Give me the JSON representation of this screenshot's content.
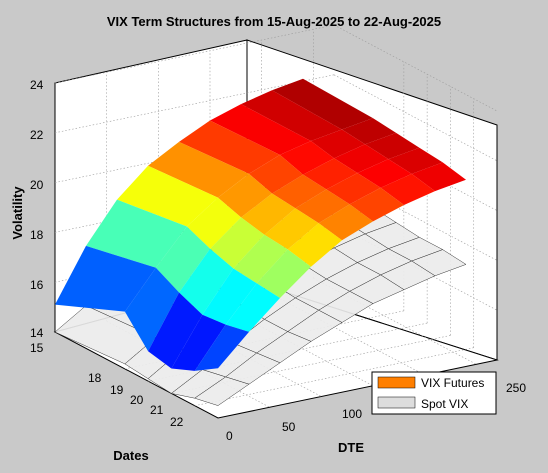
{
  "chart_data": {
    "type": "surface3d",
    "title": "VIX Term Structures from 15-Aug-2025 to 22-Aug-2025",
    "xlabel": "DTE",
    "ylabel": "Dates",
    "zlabel": "Volatility",
    "xlim": [
      0,
      270
    ],
    "ylim": [
      15,
      22
    ],
    "zlim": [
      14,
      24
    ],
    "xticks": [
      "0",
      "50",
      "100",
      "250"
    ],
    "yticks": [
      "15",
      "18",
      "19",
      "20",
      "21",
      "22"
    ],
    "zticks": [
      "14",
      "16",
      "18",
      "20",
      "22",
      "24"
    ],
    "grid": true,
    "legend": {
      "placement": "bottom-right",
      "items": [
        "VIX Futures",
        "Spot VIX"
      ]
    },
    "series": [
      {
        "name": "VIX Futures",
        "color": "#ff7f00"
      },
      {
        "name": "Spot VIX",
        "color": "#dddddd"
      }
    ],
    "dte": [
      0,
      30,
      60,
      90,
      120,
      150,
      180,
      210,
      240
    ],
    "dates": [
      15,
      18,
      19,
      20,
      21,
      22
    ],
    "futures": [
      [
        15.1,
        17.2,
        18.8,
        19.9,
        20.6,
        21.2,
        21.6,
        21.9,
        22.1
      ],
      [
        16.3,
        17.8,
        19.2,
        20.1,
        20.8,
        21.3,
        21.6,
        21.8,
        22.0
      ],
      [
        15.2,
        17.3,
        18.8,
        19.8,
        20.5,
        21.0,
        21.4,
        21.7,
        21.9
      ],
      [
        15.0,
        16.9,
        18.5,
        19.6,
        20.4,
        20.9,
        21.3,
        21.6,
        21.8
      ],
      [
        15.4,
        17.0,
        18.4,
        19.5,
        20.3,
        20.8,
        21.2,
        21.5,
        21.7
      ],
      [
        16.0,
        17.2,
        18.3,
        19.3,
        20.1,
        20.6,
        21.0,
        21.3,
        21.5
      ]
    ],
    "spot": [
      [
        14.0,
        14.8,
        15.6,
        16.3,
        16.9,
        17.4,
        17.8,
        18.1,
        18.3
      ],
      [
        14.2,
        15.0,
        15.8,
        16.4,
        17.0,
        17.5,
        17.9,
        18.2,
        18.4
      ],
      [
        14.1,
        14.9,
        15.7,
        16.3,
        16.9,
        17.4,
        17.8,
        18.1,
        18.3
      ],
      [
        14.0,
        14.7,
        15.5,
        16.2,
        16.8,
        17.3,
        17.7,
        18.0,
        18.2
      ],
      [
        14.3,
        14.9,
        15.6,
        16.2,
        16.8,
        17.3,
        17.7,
        18.0,
        18.2
      ],
      [
        14.5,
        15.1,
        15.7,
        16.3,
        16.8,
        17.3,
        17.6,
        17.9,
        18.1
      ]
    ]
  }
}
